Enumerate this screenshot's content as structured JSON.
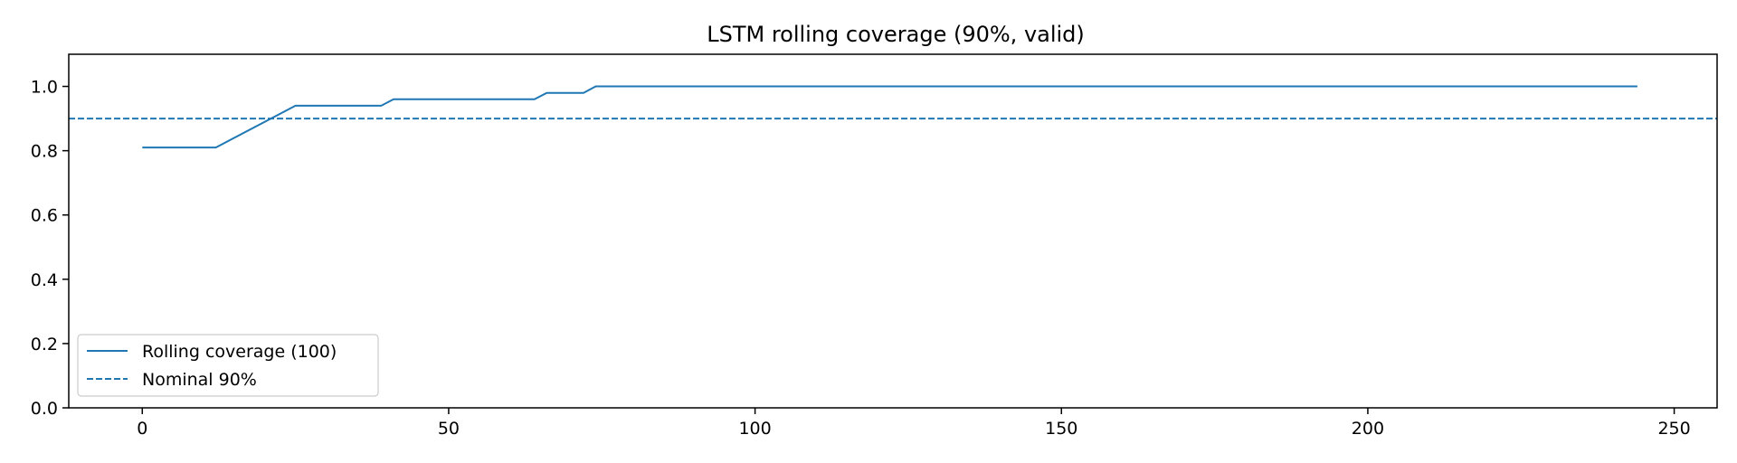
{
  "chart_data": {
    "type": "line",
    "title": "LSTM rolling coverage (90%, valid)",
    "xlabel": "",
    "ylabel": "",
    "xlim": [
      -12,
      257
    ],
    "ylim": [
      0.0,
      1.1
    ],
    "xticks": [
      0,
      50,
      100,
      150,
      200,
      250
    ],
    "yticks": [
      0.0,
      0.2,
      0.4,
      0.6,
      0.8,
      1.0
    ],
    "xtick_labels": [
      "0",
      "50",
      "100",
      "150",
      "200",
      "250"
    ],
    "ytick_labels": [
      "0.0",
      "0.2",
      "0.4",
      "0.6",
      "0.8",
      "1.0"
    ],
    "grid": false,
    "legend": "lower-left",
    "series": [
      {
        "name": "Rolling coverage (100)",
        "style": "solid",
        "color": "#1f77b4",
        "x": [
          0,
          12,
          25,
          39,
          41,
          64,
          66,
          72,
          74,
          244
        ],
        "y": [
          0.81,
          0.81,
          0.94,
          0.94,
          0.96,
          0.96,
          0.98,
          0.98,
          1.0,
          1.0
        ]
      },
      {
        "name": "Nominal 90%",
        "style": "dashed",
        "color": "#1f77b4",
        "hline": 0.9
      }
    ]
  }
}
